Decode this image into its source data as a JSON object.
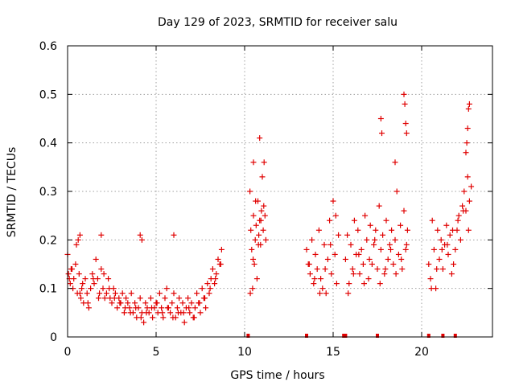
{
  "chart_data": {
    "type": "scatter",
    "title": "Day 129 of 2023, SRMTID for receiver salu",
    "xlabel": "GPS time / hours",
    "ylabel": "SRMTID / TECUs",
    "xlim": [
      0,
      24
    ],
    "ylim": [
      0,
      0.6
    ],
    "xticks": [
      0,
      5,
      10,
      15,
      20
    ],
    "yticks": [
      0,
      0.1,
      0.2,
      0.3,
      0.4,
      0.5,
      0.6
    ],
    "xtick_labels": [
      "0",
      "5",
      "10",
      "15",
      "20"
    ],
    "ytick_labels": [
      "0",
      "0.1",
      "0.2",
      "0.3",
      "0.4",
      "0.5",
      "0.6"
    ],
    "grid": true,
    "marker": "+",
    "color": "#e00000",
    "series": [
      {
        "name": "SRMTID",
        "x": [
          0.0,
          0.05,
          0.1,
          0.15,
          0.2,
          0.3,
          0.35,
          0.45,
          0.5,
          0.6,
          0.65,
          0.7,
          0.75,
          0.8,
          0.9,
          1.0,
          1.1,
          1.2,
          1.3,
          1.4,
          1.5,
          1.6,
          1.7,
          1.8,
          1.9,
          2.0,
          2.1,
          2.2,
          2.3,
          2.4,
          2.5,
          2.6,
          2.7,
          2.8,
          2.9,
          3.0,
          3.1,
          3.2,
          3.3,
          3.4,
          3.5,
          3.6,
          3.7,
          3.8,
          3.9,
          4.0,
          4.1,
          4.2,
          4.3,
          4.4,
          4.5,
          4.6,
          4.7,
          4.8,
          4.9,
          5.0,
          5.1,
          5.2,
          5.3,
          5.4,
          5.5,
          5.6,
          5.7,
          5.8,
          5.9,
          6.0,
          6.1,
          6.2,
          6.3,
          6.4,
          6.5,
          6.6,
          6.7,
          6.8,
          6.9,
          7.0,
          7.1,
          7.2,
          7.3,
          7.4,
          7.5,
          7.6,
          7.7,
          7.8,
          7.9,
          8.0,
          8.1,
          8.2,
          8.3,
          8.4,
          8.5,
          8.6,
          8.7,
          10.3,
          10.35,
          10.4,
          10.45,
          10.5,
          10.55,
          10.6,
          10.65,
          10.7,
          10.75,
          10.8,
          10.85,
          10.9,
          10.95,
          11.0,
          11.05,
          11.1,
          11.15,
          11.2,
          13.5,
          13.6,
          13.7,
          13.8,
          13.9,
          14.0,
          14.1,
          14.2,
          14.3,
          14.4,
          14.5,
          14.6,
          14.7,
          14.8,
          14.9,
          15.0,
          15.1,
          15.2,
          15.3,
          15.7,
          15.8,
          15.9,
          16.0,
          16.1,
          16.2,
          16.3,
          16.4,
          16.5,
          16.6,
          16.7,
          16.8,
          16.9,
          17.0,
          17.1,
          17.2,
          17.3,
          17.4,
          17.5,
          17.6,
          17.7,
          17.8,
          17.9,
          18.0,
          18.1,
          18.2,
          18.3,
          18.4,
          18.5,
          18.6,
          18.7,
          18.8,
          18.9,
          19.0,
          19.1,
          19.2,
          20.4,
          20.5,
          20.6,
          20.7,
          20.8,
          20.9,
          21.0,
          21.1,
          21.2,
          21.3,
          21.4,
          21.5,
          21.6,
          21.7,
          21.8,
          21.9,
          22.0,
          22.1,
          22.2,
          22.3,
          22.4,
          22.5,
          22.6,
          22.7,
          22.8,
          0.25,
          0.55,
          0.85,
          1.15,
          1.45,
          1.75,
          2.05,
          2.35,
          2.65,
          2.95,
          3.25,
          3.55,
          3.85,
          4.15,
          4.45,
          4.75,
          5.05,
          5.35,
          5.65,
          5.95,
          6.25,
          6.55,
          6.85,
          7.15,
          7.45,
          7.75,
          8.05,
          8.35,
          8.65,
          10.32,
          10.48,
          10.62,
          10.78,
          10.92,
          11.08,
          13.65,
          13.95,
          14.25,
          14.55,
          14.85,
          15.15,
          15.85,
          16.15,
          16.45,
          16.75,
          17.05,
          17.35,
          17.65,
          17.95,
          18.25,
          18.55,
          18.85,
          19.15,
          20.55,
          20.85,
          21.15,
          21.45,
          21.75,
          22.05,
          22.35,
          22.65,
          0.7,
          1.9,
          4.1,
          4.2,
          6.0,
          10.5,
          10.85,
          17.7,
          17.75,
          18.5,
          19.0,
          19.05,
          19.1,
          19.15,
          22.5,
          22.55,
          22.6,
          22.65,
          22.7
        ],
        "y": [
          0.17,
          0.13,
          0.12,
          0.11,
          0.14,
          0.1,
          0.12,
          0.15,
          0.19,
          0.2,
          0.13,
          0.09,
          0.08,
          0.1,
          0.07,
          0.12,
          0.09,
          0.06,
          0.1,
          0.13,
          0.11,
          0.16,
          0.12,
          0.09,
          0.14,
          0.1,
          0.08,
          0.09,
          0.12,
          0.08,
          0.07,
          0.1,
          0.09,
          0.06,
          0.08,
          0.07,
          0.09,
          0.05,
          0.08,
          0.07,
          0.06,
          0.09,
          0.05,
          0.07,
          0.04,
          0.06,
          0.08,
          0.05,
          0.03,
          0.07,
          0.06,
          0.05,
          0.08,
          0.04,
          0.06,
          0.07,
          0.05,
          0.09,
          0.06,
          0.04,
          0.08,
          0.1,
          0.06,
          0.05,
          0.07,
          0.09,
          0.04,
          0.06,
          0.08,
          0.05,
          0.07,
          0.03,
          0.06,
          0.08,
          0.05,
          0.07,
          0.04,
          0.06,
          0.09,
          0.07,
          0.05,
          0.1,
          0.08,
          0.06,
          0.11,
          0.09,
          0.12,
          0.14,
          0.11,
          0.13,
          0.16,
          0.15,
          0.18,
          0.3,
          0.22,
          0.18,
          0.1,
          0.25,
          0.15,
          0.2,
          0.23,
          0.12,
          0.28,
          0.21,
          0.24,
          0.19,
          0.26,
          0.33,
          0.22,
          0.36,
          0.25,
          0.2,
          0.18,
          0.15,
          0.13,
          0.2,
          0.11,
          0.17,
          0.14,
          0.22,
          0.12,
          0.1,
          0.19,
          0.09,
          0.16,
          0.24,
          0.13,
          0.28,
          0.17,
          0.11,
          0.21,
          0.16,
          0.21,
          0.11,
          0.19,
          0.14,
          0.24,
          0.17,
          0.22,
          0.13,
          0.18,
          0.15,
          0.25,
          0.2,
          0.12,
          0.23,
          0.15,
          0.19,
          0.22,
          0.14,
          0.27,
          0.18,
          0.21,
          0.13,
          0.24,
          0.16,
          0.19,
          0.22,
          0.15,
          0.2,
          0.3,
          0.17,
          0.23,
          0.14,
          0.26,
          0.18,
          0.22,
          0.15,
          0.12,
          0.24,
          0.18,
          0.1,
          0.22,
          0.16,
          0.2,
          0.14,
          0.19,
          0.23,
          0.17,
          0.21,
          0.13,
          0.15,
          0.18,
          0.22,
          0.25,
          0.2,
          0.27,
          0.3,
          0.26,
          0.33,
          0.28,
          0.31,
          0.14,
          0.09,
          0.11,
          0.07,
          0.12,
          0.08,
          0.13,
          0.1,
          0.08,
          0.07,
          0.06,
          0.05,
          0.06,
          0.04,
          0.05,
          0.06,
          0.07,
          0.05,
          0.06,
          0.04,
          0.05,
          0.05,
          0.06,
          0.04,
          0.07,
          0.08,
          0.1,
          0.12,
          0.15,
          0.09,
          0.16,
          0.28,
          0.19,
          0.24,
          0.27,
          0.15,
          0.12,
          0.09,
          0.14,
          0.19,
          0.25,
          0.09,
          0.13,
          0.17,
          0.11,
          0.16,
          0.2,
          0.11,
          0.14,
          0.18,
          0.13,
          0.16,
          0.19,
          0.1,
          0.14,
          0.18,
          0.19,
          0.22,
          0.24,
          0.26,
          0.22,
          0.21,
          0.21,
          0.21,
          0.2,
          0.21,
          0.36,
          0.41,
          0.45,
          0.42,
          0.36,
          0.5,
          0.48,
          0.44,
          0.42,
          0.38,
          0.4,
          0.43,
          0.47,
          0.48
        ]
      }
    ],
    "gap_markers_x": [
      10.2,
      13.5,
      15.6,
      15.7,
      17.5,
      20.4,
      21.2,
      21.9
    ]
  }
}
